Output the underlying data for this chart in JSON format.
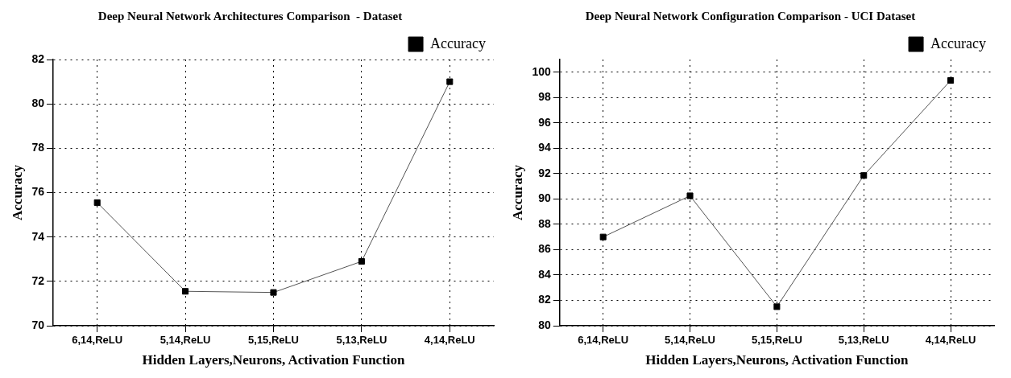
{
  "chart_data": [
    {
      "type": "line",
      "title": "Deep Neural Network Architectures Comparison  - Dataset",
      "xlabel": "Hidden Layers,Neurons, Activation Function",
      "ylabel": "Accuracy",
      "categories": [
        "6,14,ReLU",
        "5,14,ReLU",
        "5,15,ReLU",
        "5,13,ReLU",
        "4,14,ReLU"
      ],
      "series": [
        {
          "name": "Accuracy",
          "color": "#000000",
          "values": [
            75.55,
            71.55,
            71.5,
            72.9,
            81.0
          ]
        }
      ],
      "ylim": [
        70,
        82
      ],
      "yticks": [
        70,
        72,
        74,
        76,
        78,
        80,
        82
      ],
      "grid": true,
      "legend": "top right",
      "marker": "square",
      "line_style": "solid"
    },
    {
      "type": "line",
      "title": "Deep Neural Network Configuration Comparison - UCI Dataset",
      "xlabel": "Hidden Layers,Neurons, Activation Function",
      "ylabel": "Accuracy",
      "categories": [
        "6,14,ReLU",
        "5,14,ReLU",
        "5,15,ReLU",
        "5,13,ReLU",
        "4,14,ReLU"
      ],
      "series": [
        {
          "name": "Accuracy",
          "color": "#000000",
          "values": [
            87.0,
            90.25,
            81.5,
            91.85,
            99.35
          ]
        }
      ],
      "ylim": [
        80,
        101
      ],
      "yticks": [
        80,
        82,
        84,
        86,
        88,
        90,
        92,
        94,
        96,
        98,
        100
      ],
      "grid": true,
      "legend": "top right",
      "marker": "square",
      "line_style": "solid"
    }
  ]
}
